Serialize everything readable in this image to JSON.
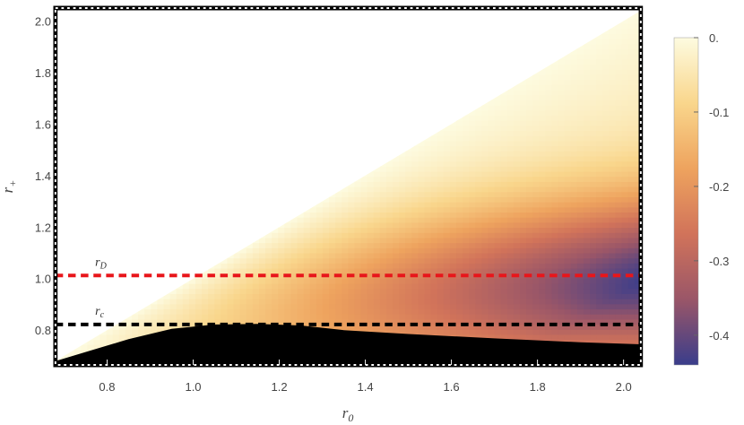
{
  "chart_data": {
    "type": "heatmap",
    "title": "",
    "xlabel": "r",
    "xlabel_sub": "0",
    "ylabel": "r",
    "ylabel_sub": "+",
    "xlim": [
      0.68,
      2.04
    ],
    "ylim": [
      0.665,
      2.05
    ],
    "x_ticks": [
      "0.8",
      "1.0",
      "1.2",
      "1.4",
      "1.6",
      "1.8",
      "2.0"
    ],
    "x_tick_values": [
      0.8,
      1.0,
      1.2,
      1.4,
      1.6,
      1.8,
      2.0
    ],
    "y_ticks": [
      "0.8",
      "1.0",
      "1.2",
      "1.4",
      "1.6",
      "1.8",
      "2.0"
    ],
    "y_tick_values": [
      0.8,
      1.0,
      1.2,
      1.4,
      1.6,
      1.8,
      2.0
    ],
    "grid": false,
    "colorbar": {
      "ticks": [
        "0.",
        "-0.1",
        "-0.2",
        "-0.3",
        "-0.4"
      ],
      "tick_values": [
        0,
        -0.1,
        -0.2,
        -0.3,
        -0.4
      ],
      "range": [
        -0.44,
        0
      ],
      "colors": [
        "#fdfbe0",
        "#f9d68c",
        "#eea35e",
        "#d1735a",
        "#9a5668",
        "#3a3d8b"
      ]
    },
    "region": {
      "description_values": "filled where r_+ <= r_0 and above black boundary",
      "upper_boundary": [
        [
          0.68,
          0.68
        ],
        [
          2.04,
          2.04
        ]
      ]
    },
    "black_region_boundary": [
      [
        0.68,
        0.68
      ],
      [
        0.75,
        0.715
      ],
      [
        0.85,
        0.765
      ],
      [
        0.95,
        0.805
      ],
      [
        1.05,
        0.822
      ],
      [
        1.15,
        0.824
      ],
      [
        1.25,
        0.818
      ],
      [
        1.35,
        0.8
      ],
      [
        1.5,
        0.785
      ],
      [
        1.7,
        0.768
      ],
      [
        1.9,
        0.753
      ],
      [
        2.04,
        0.745
      ]
    ],
    "horizontal_lines": [
      {
        "label": "r",
        "label_sub": "D",
        "y": 1.012,
        "color": "#e8161b"
      },
      {
        "label": "r",
        "label_sub": "c",
        "y": 0.822,
        "color": "#000000"
      }
    ]
  }
}
